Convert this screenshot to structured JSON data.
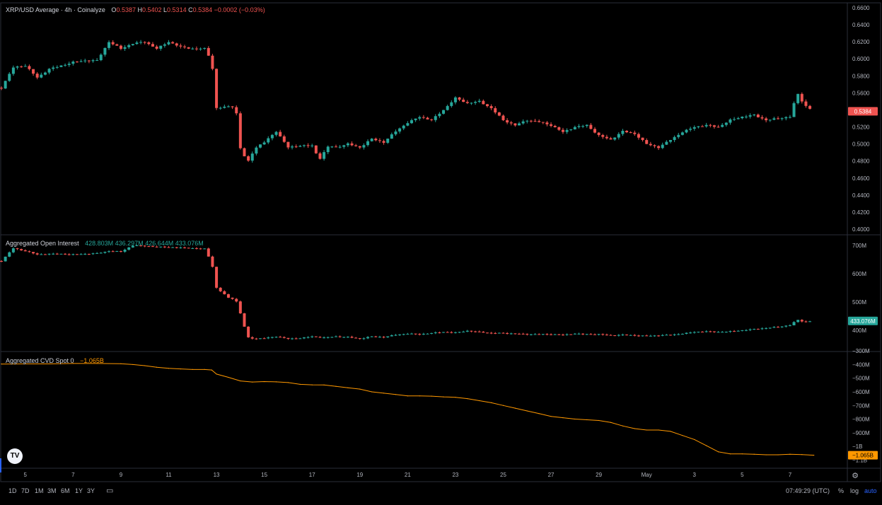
{
  "colors": {
    "up": "#26a69a",
    "down": "#ef5350",
    "cvd": "#ff9800",
    "grid": "#2a2e39",
    "text": "#b2b5be"
  },
  "header": {
    "symbol_title": "XRP/USD Average · 4h · Coinalyze",
    "o_label": "O",
    "o_value": "0.5387",
    "h_label": "H",
    "h_value": "0.5402",
    "l_label": "L",
    "l_value": "0.5314",
    "c_label": "C",
    "c_value": "0.5384",
    "change": "−0.0002 (−0.03%)"
  },
  "oi_legend": {
    "title": "Aggregated Open Interest",
    "values": [
      "428.803M",
      "436.297M",
      "426.644M",
      "433.076M"
    ]
  },
  "cvd_legend": {
    "title": "Aggregated CVD Spot 0",
    "value": "−1.065B"
  },
  "price_axis": {
    "ticks": [
      "0.6600",
      "0.6400",
      "0.6200",
      "0.6000",
      "0.5800",
      "0.5600",
      "0.5400",
      "0.5200",
      "0.5000",
      "0.4800",
      "0.4600",
      "0.4400",
      "0.4200",
      "0.4000"
    ],
    "last_label": "0.5384"
  },
  "oi_axis": {
    "ticks": [
      "700M",
      "600M",
      "500M",
      "400M"
    ],
    "last_label": "433.076M"
  },
  "cvd_axis": {
    "ticks": [
      "−300M",
      "−400M",
      "−500M",
      "−600M",
      "−700M",
      "−800M",
      "−900M",
      "−1B",
      "−1.1B"
    ],
    "last_label": "−1.065B"
  },
  "time_axis": {
    "labels": [
      "5",
      "7",
      "9",
      "11",
      "13",
      "15",
      "17",
      "19",
      "21",
      "23",
      "25",
      "27",
      "29",
      "May",
      "3",
      "5",
      "7"
    ]
  },
  "toolbar": {
    "timeframes": [
      "1D",
      "7D",
      "1M",
      "3M",
      "6M",
      "1Y",
      "3Y"
    ],
    "clock": "07:49:29 (UTC)",
    "percent": "%",
    "log": "log",
    "auto": "auto"
  },
  "logo_text": "TV",
  "chart_data": [
    {
      "type": "candlestick",
      "title": "XRP/USD Average · 4h · Coinalyze",
      "ylim": [
        0.395,
        0.665
      ],
      "x_range": [
        "Apr 4",
        "May 7"
      ],
      "candles_approx": "4h candles; key path below as [day, close]",
      "path": [
        [
          4.0,
          0.566
        ],
        [
          4.5,
          0.59
        ],
        [
          5.0,
          0.592
        ],
        [
          5.5,
          0.578
        ],
        [
          6.0,
          0.588
        ],
        [
          6.5,
          0.592
        ],
        [
          7.0,
          0.596
        ],
        [
          7.5,
          0.598
        ],
        [
          8.0,
          0.598
        ],
        [
          8.5,
          0.62
        ],
        [
          9.0,
          0.612
        ],
        [
          9.5,
          0.618
        ],
        [
          10.0,
          0.62
        ],
        [
          10.5,
          0.612
        ],
        [
          11.0,
          0.62
        ],
        [
          11.5,
          0.614
        ],
        [
          12.0,
          0.612
        ],
        [
          12.5,
          0.612
        ],
        [
          12.8,
          0.598
        ],
        [
          13.0,
          0.542
        ],
        [
          13.5,
          0.544
        ],
        [
          13.8,
          0.544
        ],
        [
          14.0,
          0.495
        ],
        [
          14.3,
          0.478
        ],
        [
          14.6,
          0.495
        ],
        [
          15.0,
          0.502
        ],
        [
          15.5,
          0.515
        ],
        [
          16.0,
          0.496
        ],
        [
          16.5,
          0.498
        ],
        [
          17.0,
          0.498
        ],
        [
          17.3,
          0.482
        ],
        [
          17.7,
          0.498
        ],
        [
          18.0,
          0.496
        ],
        [
          18.5,
          0.5
        ],
        [
          19.0,
          0.496
        ],
        [
          19.5,
          0.506
        ],
        [
          20.0,
          0.502
        ],
        [
          20.5,
          0.515
        ],
        [
          21.0,
          0.525
        ],
        [
          21.5,
          0.532
        ],
        [
          22.0,
          0.528
        ],
        [
          22.5,
          0.54
        ],
        [
          23.0,
          0.554
        ],
        [
          23.5,
          0.548
        ],
        [
          24.0,
          0.55
        ],
        [
          24.5,
          0.542
        ],
        [
          25.0,
          0.528
        ],
        [
          25.5,
          0.522
        ],
        [
          26.0,
          0.528
        ],
        [
          26.5,
          0.526
        ],
        [
          27.0,
          0.522
        ],
        [
          27.5,
          0.514
        ],
        [
          28.0,
          0.52
        ],
        [
          28.5,
          0.522
        ],
        [
          29.0,
          0.51
        ],
        [
          29.5,
          0.505
        ],
        [
          30.0,
          0.515
        ],
        [
          30.5,
          0.512
        ],
        [
          31.0,
          0.5
        ],
        [
          31.5,
          0.496
        ],
        [
          32.0,
          0.505
        ],
        [
          32.5,
          0.514
        ],
        [
          33.0,
          0.52
        ],
        [
          33.5,
          0.522
        ],
        [
          34.0,
          0.52
        ],
        [
          34.5,
          0.528
        ],
        [
          35.0,
          0.532
        ],
        [
          35.5,
          0.534
        ],
        [
          36.0,
          0.528
        ],
        [
          36.5,
          0.53
        ],
        [
          37.0,
          0.532
        ],
        [
          37.3,
          0.56
        ],
        [
          37.6,
          0.546
        ],
        [
          38.0,
          0.538
        ]
      ]
    },
    {
      "type": "candlestick",
      "title": "Aggregated Open Interest",
      "ylim": [
        330,
        730
      ],
      "unit": "M",
      "path": [
        [
          4.0,
          645
        ],
        [
          4.5,
          690
        ],
        [
          5.0,
          680
        ],
        [
          5.5,
          668
        ],
        [
          6.0,
          670
        ],
        [
          6.5,
          670
        ],
        [
          7.0,
          668
        ],
        [
          7.5,
          670
        ],
        [
          8.0,
          672
        ],
        [
          8.5,
          680
        ],
        [
          9.0,
          678
        ],
        [
          9.5,
          700
        ],
        [
          10.0,
          698
        ],
        [
          10.5,
          695
        ],
        [
          11.0,
          694
        ],
        [
          11.5,
          692
        ],
        [
          12.0,
          690
        ],
        [
          12.5,
          688
        ],
        [
          12.8,
          640
        ],
        [
          13.0,
          550
        ],
        [
          13.5,
          515
        ],
        [
          13.8,
          510
        ],
        [
          14.0,
          460
        ],
        [
          14.3,
          375
        ],
        [
          14.6,
          370
        ],
        [
          15.0,
          372
        ],
        [
          15.5,
          378
        ],
        [
          16.0,
          370
        ],
        [
          16.5,
          372
        ],
        [
          17.0,
          378
        ],
        [
          17.5,
          374
        ],
        [
          18.0,
          378
        ],
        [
          18.5,
          376
        ],
        [
          19.0,
          370
        ],
        [
          19.5,
          378
        ],
        [
          20.0,
          376
        ],
        [
          20.5,
          384
        ],
        [
          21.0,
          388
        ],
        [
          21.5,
          386
        ],
        [
          22.0,
          390
        ],
        [
          22.5,
          394
        ],
        [
          23.0,
          392
        ],
        [
          23.5,
          398
        ],
        [
          24.0,
          394
        ],
        [
          24.5,
          390
        ],
        [
          25.0,
          390
        ],
        [
          25.5,
          388
        ],
        [
          26.0,
          386
        ],
        [
          26.5,
          386
        ],
        [
          27.0,
          386
        ],
        [
          27.5,
          384
        ],
        [
          28.0,
          388
        ],
        [
          28.5,
          386
        ],
        [
          29.0,
          386
        ],
        [
          29.5,
          382
        ],
        [
          30.0,
          384
        ],
        [
          30.5,
          382
        ],
        [
          31.0,
          380
        ],
        [
          31.5,
          382
        ],
        [
          32.0,
          384
        ],
        [
          32.5,
          388
        ],
        [
          33.0,
          394
        ],
        [
          33.5,
          396
        ],
        [
          34.0,
          394
        ],
        [
          34.5,
          396
        ],
        [
          35.0,
          400
        ],
        [
          35.5,
          404
        ],
        [
          36.0,
          408
        ],
        [
          36.5,
          412
        ],
        [
          37.0,
          418
        ],
        [
          37.3,
          437
        ],
        [
          37.6,
          430
        ],
        [
          38.0,
          433
        ]
      ]
    },
    {
      "type": "line",
      "title": "Aggregated CVD Spot 0",
      "ylim": [
        -1150,
        -320
      ],
      "unit": "M",
      "x": [
        4.0,
        5.0,
        6.0,
        7.0,
        8.0,
        9.0,
        9.5,
        10.0,
        10.5,
        11.0,
        11.5,
        12.0,
        12.5,
        12.8,
        13.0,
        13.5,
        14.0,
        14.5,
        15.0,
        15.5,
        16.0,
        16.5,
        17.0,
        17.5,
        18.0,
        18.5,
        19.0,
        19.5,
        20.0,
        20.5,
        21.0,
        21.5,
        22.0,
        22.5,
        23.0,
        23.5,
        24.0,
        24.5,
        25.0,
        25.5,
        26.0,
        26.5,
        27.0,
        27.5,
        28.0,
        28.5,
        29.0,
        29.5,
        30.0,
        30.5,
        31.0,
        31.5,
        32.0,
        32.5,
        33.0,
        33.5,
        34.0,
        34.5,
        35.0,
        35.5,
        36.0,
        36.5,
        37.0,
        37.5,
        38.0
      ],
      "y": [
        -396,
        -395,
        -395,
        -392,
        -392,
        -394,
        -400,
        -408,
        -420,
        -428,
        -432,
        -436,
        -436,
        -440,
        -470,
        -494,
        -520,
        -528,
        -525,
        -527,
        -532,
        -545,
        -549,
        -550,
        -560,
        -570,
        -580,
        -600,
        -610,
        -620,
        -630,
        -630,
        -632,
        -637,
        -640,
        -650,
        -665,
        -680,
        -700,
        -720,
        -740,
        -760,
        -780,
        -790,
        -800,
        -805,
        -810,
        -825,
        -850,
        -870,
        -880,
        -880,
        -890,
        -920,
        -950,
        -995,
        -1040,
        -1055,
        -1055,
        -1058,
        -1062,
        -1062,
        -1058,
        -1060,
        -1065
      ]
    }
  ]
}
